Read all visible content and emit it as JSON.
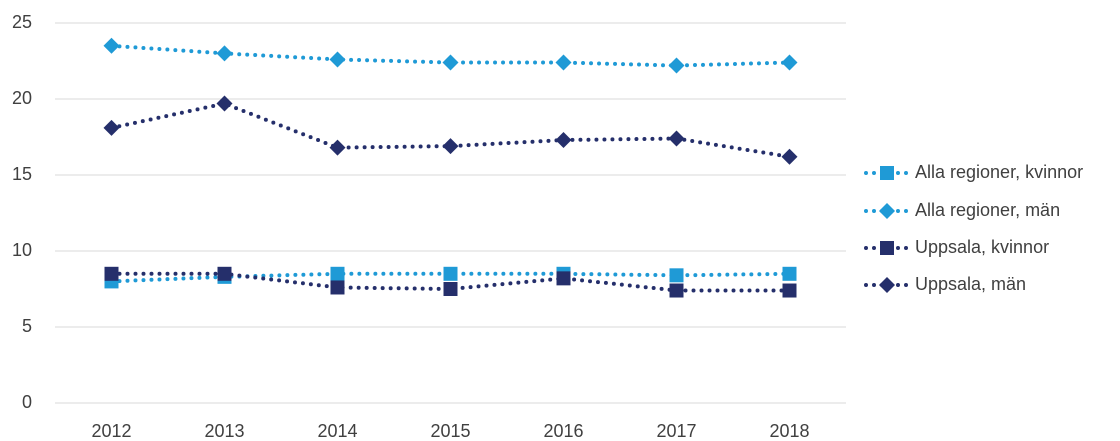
{
  "chart_data": {
    "type": "line",
    "categories": [
      "2012",
      "2013",
      "2014",
      "2015",
      "2016",
      "2017",
      "2018"
    ],
    "series": [
      {
        "name": "Alla regioner, kvinnor",
        "color": "#1f9ad6",
        "marker": "square",
        "values": [
          8.0,
          8.3,
          8.5,
          8.5,
          8.5,
          8.4,
          8.5
        ]
      },
      {
        "name": "Alla regioner, män",
        "color": "#1f9ad6",
        "marker": "diamond",
        "values": [
          23.5,
          23.0,
          22.6,
          22.4,
          22.4,
          22.2,
          22.4
        ]
      },
      {
        "name": "Uppsala, kvinnor",
        "color": "#252f6b",
        "marker": "square",
        "values": [
          8.5,
          8.5,
          7.6,
          7.5,
          8.2,
          7.4,
          7.4
        ]
      },
      {
        "name": "Uppsala, män",
        "color": "#252f6b",
        "marker": "diamond",
        "values": [
          18.1,
          19.7,
          16.8,
          16.9,
          17.3,
          17.4,
          16.2
        ]
      }
    ],
    "ylim": [
      0,
      25
    ],
    "yticks": [
      0,
      5,
      10,
      15,
      20,
      25
    ],
    "grid": true,
    "legend": "right"
  }
}
